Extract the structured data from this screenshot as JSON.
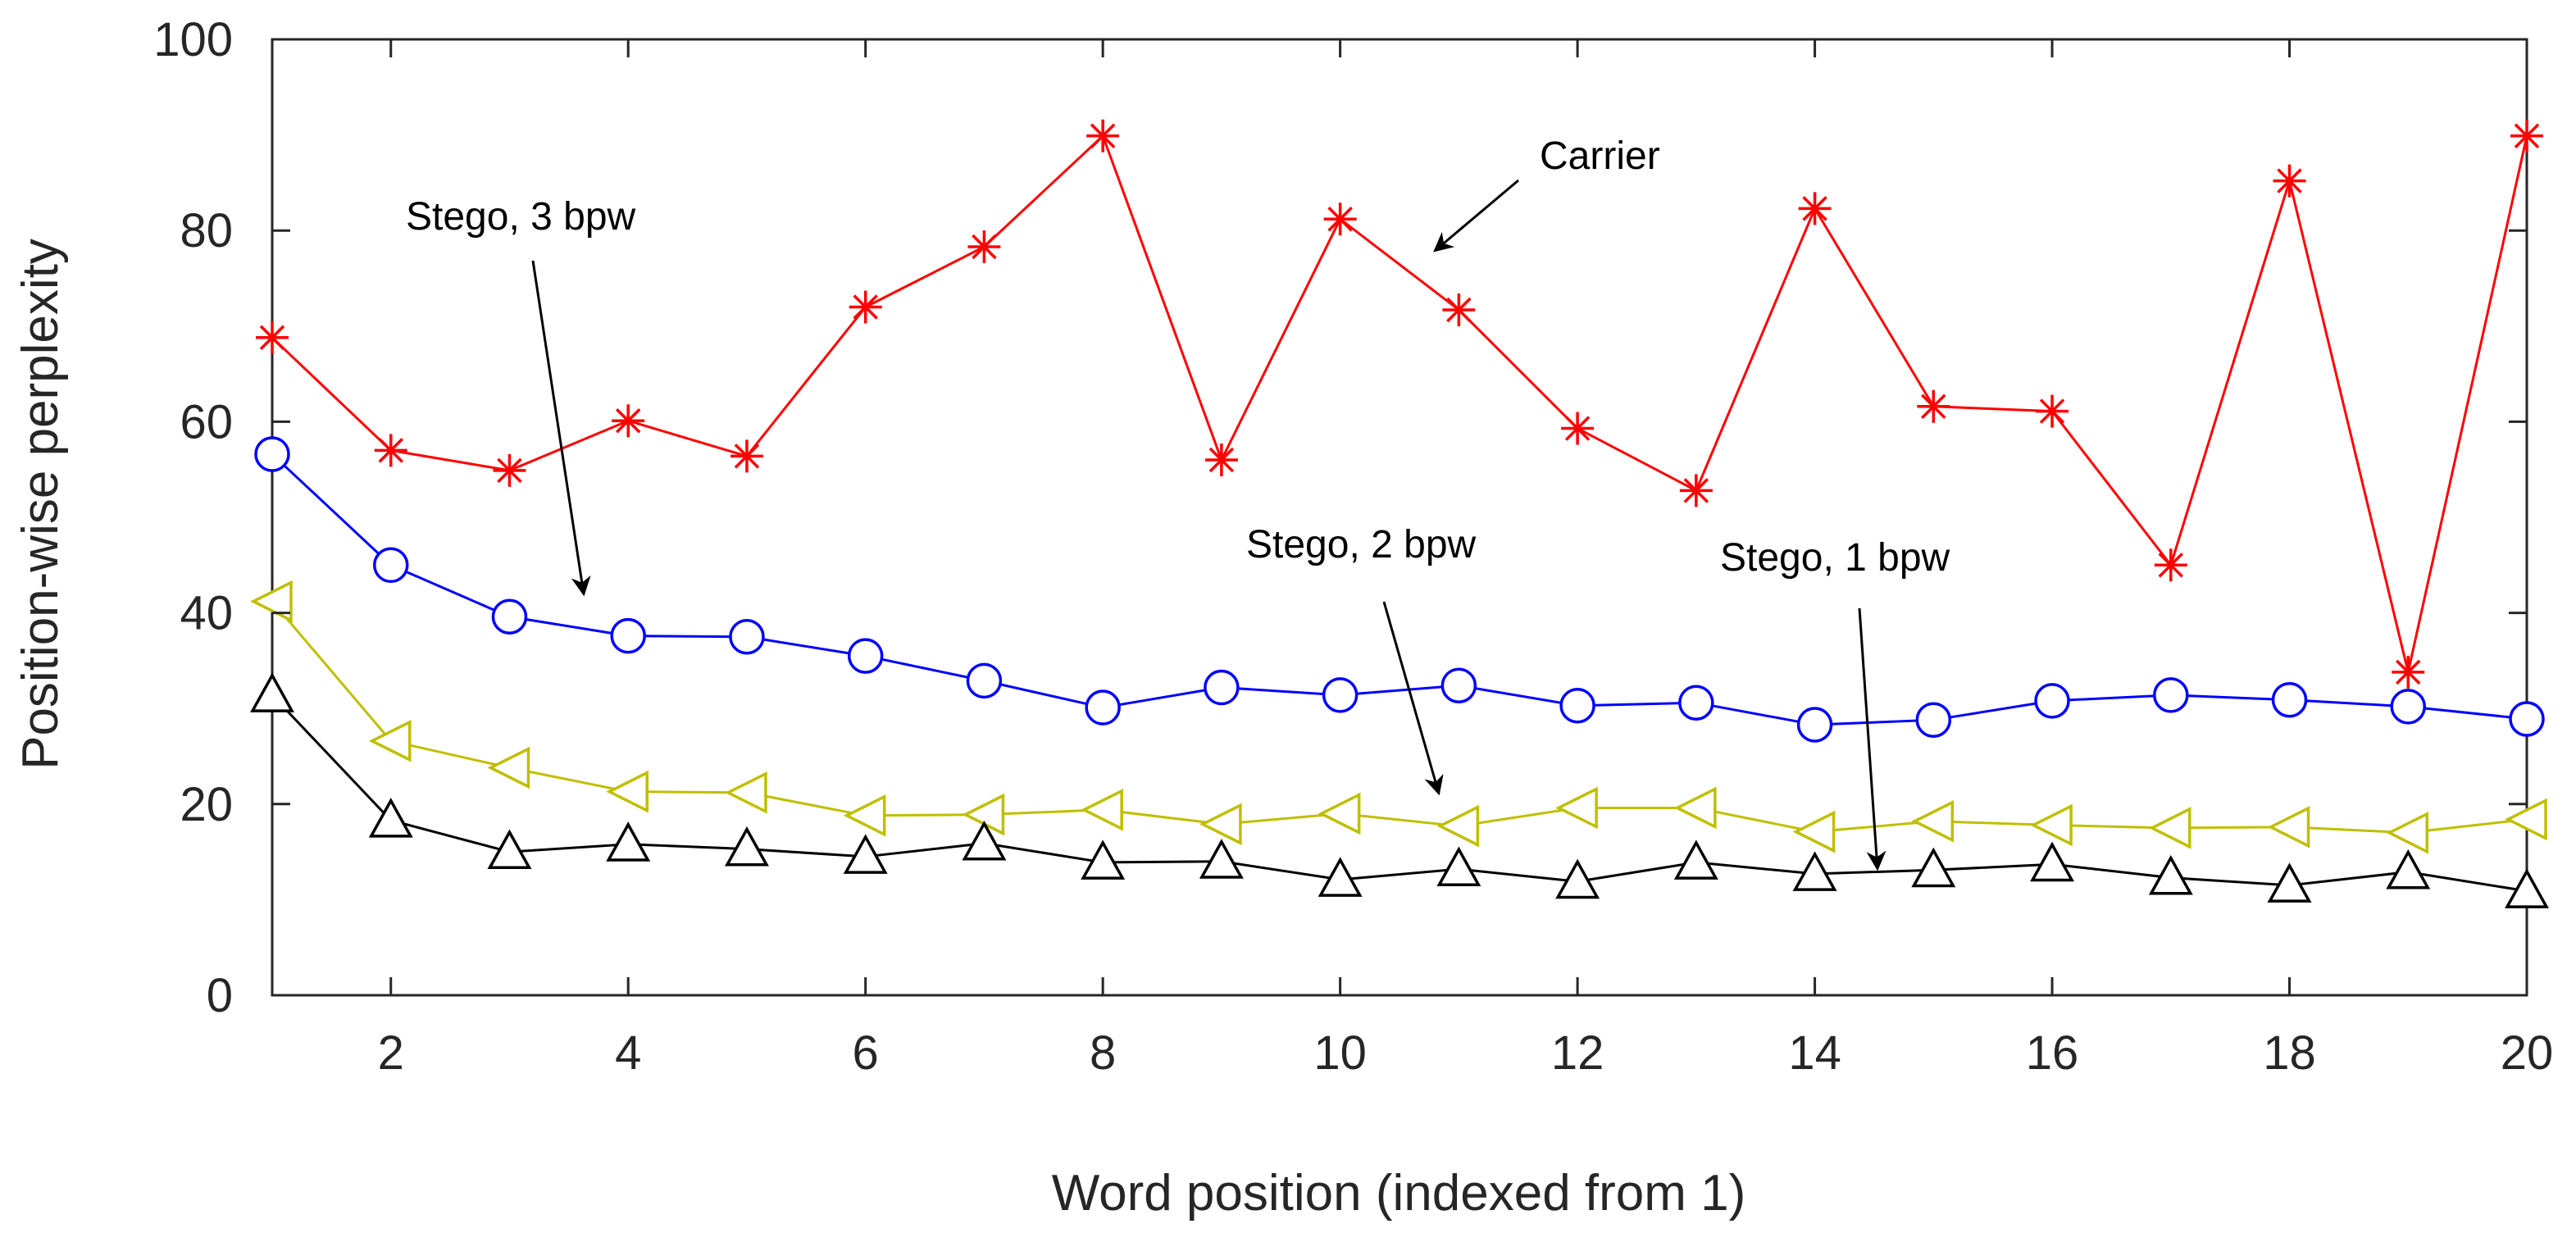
{
  "chart_data": {
    "type": "line",
    "title": "",
    "xlabel": "Word position (indexed from 1)",
    "ylabel": "Position-wise perplexity",
    "xlim": [
      1,
      20
    ],
    "ylim": [
      0,
      100
    ],
    "x": [
      1,
      2,
      3,
      4,
      5,
      6,
      7,
      8,
      9,
      10,
      11,
      12,
      13,
      14,
      15,
      16,
      17,
      18,
      19,
      20
    ],
    "xticks": [
      2,
      4,
      6,
      8,
      10,
      12,
      14,
      16,
      18,
      20
    ],
    "yticks": [
      0,
      20,
      40,
      60,
      80,
      100
    ],
    "grid": false,
    "series": [
      {
        "name": "Carrier",
        "color": "#ff0000",
        "marker": "asterisk",
        "values": [
          68.8,
          57.0,
          54.9,
          60.1,
          56.4,
          72.0,
          78.3,
          89.9,
          56.0,
          81.2,
          71.7,
          59.3,
          52.8,
          82.3,
          61.6,
          61.1,
          45.0,
          85.2,
          33.8,
          89.9
        ]
      },
      {
        "name": "Stego, 3 bpw",
        "color": "#0000ff",
        "marker": "circle",
        "values": [
          56.6,
          45.0,
          39.6,
          37.6,
          37.5,
          35.5,
          32.9,
          30.1,
          32.2,
          31.4,
          32.4,
          30.3,
          30.6,
          28.3,
          28.8,
          30.8,
          31.4,
          30.9,
          30.2,
          28.9
        ]
      },
      {
        "name": "Stego, 2 bpw",
        "color": "#bfbf00",
        "marker": "triangle-left",
        "values": [
          41.2,
          26.6,
          23.8,
          21.3,
          21.2,
          18.8,
          18.9,
          19.4,
          17.9,
          19.0,
          17.7,
          19.6,
          19.6,
          17.1,
          18.2,
          17.8,
          17.5,
          17.6,
          17.0,
          18.4
        ]
      },
      {
        "name": "Stego, 1 bpw",
        "color": "#000000",
        "marker": "triangle-up",
        "values": [
          31.4,
          18.3,
          15.0,
          15.8,
          15.3,
          14.5,
          15.9,
          13.9,
          14.0,
          12.1,
          13.2,
          11.9,
          13.9,
          12.7,
          13.1,
          13.7,
          12.3,
          11.5,
          12.9,
          10.9
        ]
      }
    ],
    "annotations": [
      {
        "text": "Carrier",
        "series": 0
      },
      {
        "text": "Stego, 3 bpw",
        "series": 1
      },
      {
        "text": "Stego, 2 bpw",
        "series": 2
      },
      {
        "text": "Stego, 1 bpw",
        "series": 3
      }
    ]
  }
}
